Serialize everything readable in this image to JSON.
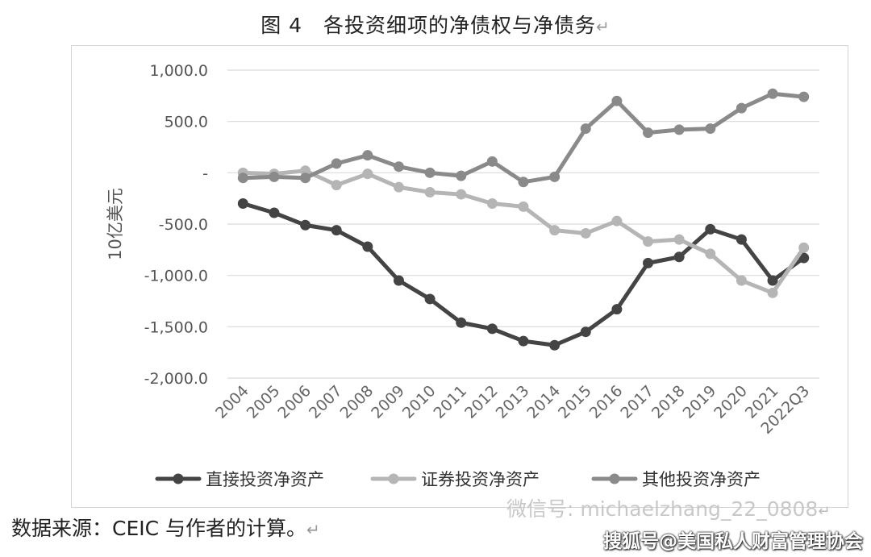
{
  "title": "图 4　各投资细项的净债权与净债务",
  "return_mark": "↵",
  "source_text": "数据来源：CEIC 与作者的计算。",
  "watermark_wechat": "微信号: michaelzhang_22_0808",
  "watermark_sohu": "搜狐号@美国私人财富管理协会",
  "chart_data": {
    "type": "line",
    "ylabel": "10亿美元",
    "ylim": [
      -2000,
      1000
    ],
    "yticks": [
      1000,
      500,
      0,
      -500,
      -1000,
      -1500,
      -2000
    ],
    "ytick_labels": [
      "1,000.0",
      "500.0",
      "-",
      "-500.0",
      "-1,000.0",
      "-1,500.0",
      "-2,000.0"
    ],
    "grid": true,
    "legend_position": "bottom",
    "categories": [
      "2004",
      "2005",
      "2006",
      "2007",
      "2008",
      "2009",
      "2010",
      "2011",
      "2012",
      "2013",
      "2014",
      "2015",
      "2016",
      "2017",
      "2018",
      "2019",
      "2020",
      "2021",
      "2022Q3"
    ],
    "series": [
      {
        "name": "直接投资净资产",
        "color": "#444444",
        "values": [
          -300,
          -390,
          -510,
          -560,
          -720,
          -1050,
          -1230,
          -1460,
          -1520,
          -1640,
          -1680,
          -1550,
          -1330,
          -880,
          -820,
          -550,
          -650,
          -1050,
          -830
        ]
      },
      {
        "name": "证券投资净资产",
        "color": "#b5b5b5",
        "values": [
          0,
          -10,
          20,
          -120,
          -10,
          -140,
          -190,
          -210,
          -300,
          -330,
          -560,
          -590,
          -470,
          -670,
          -650,
          -790,
          -1050,
          -1170,
          -730
        ]
      },
      {
        "name": "其他投资净资产",
        "color": "#8a8a8a",
        "values": [
          -50,
          -40,
          -50,
          90,
          170,
          60,
          0,
          -30,
          110,
          -90,
          -40,
          430,
          700,
          390,
          420,
          430,
          630,
          770,
          740
        ]
      }
    ]
  }
}
